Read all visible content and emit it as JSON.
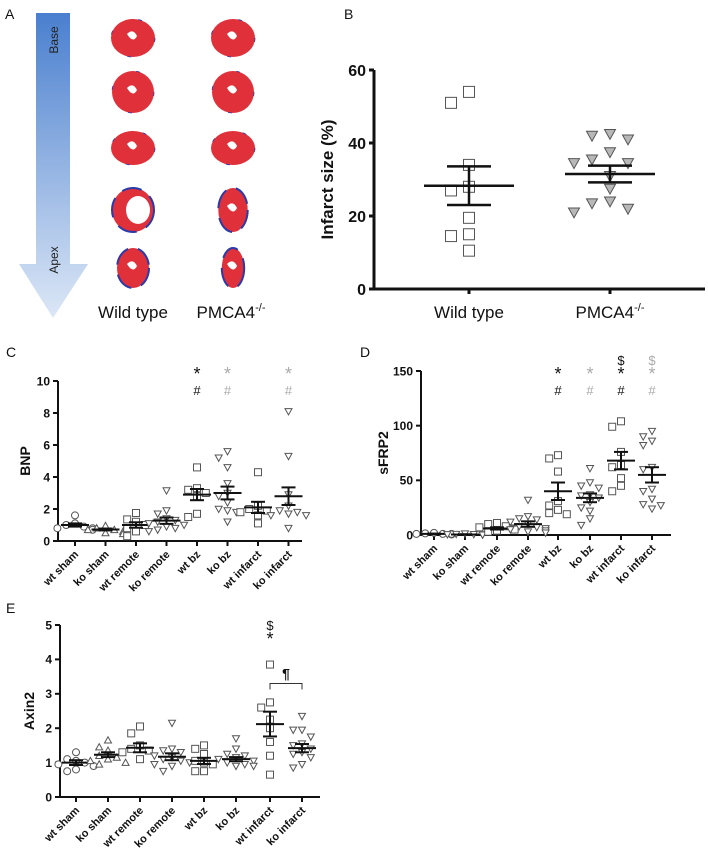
{
  "panel_a": {
    "letter": "A",
    "arrow_top_label": "Base",
    "arrow_bottom_label": "Apex",
    "columns": [
      {
        "label": "Wild type",
        "sup": ""
      },
      {
        "label": "PMCA4",
        "sup": "-/-"
      }
    ],
    "colors": {
      "arrow_top": "#4a7fcf",
      "arrow_bottom": "#dce7f6",
      "tissue": "#e0303a",
      "fibrosis": "#2a3aa8"
    }
  },
  "chart_data": [
    {
      "panel": "B",
      "type": "scatter",
      "title": "",
      "xlabel": "",
      "ylabel": "Infarct size (%)",
      "ylim": [
        0,
        60
      ],
      "yticks": [
        0,
        20,
        40,
        60
      ],
      "grid": false,
      "categories": [
        "Wild type",
        "PMCA4"
      ],
      "category_sup": [
        "",
        "-/-"
      ],
      "groups": [
        {
          "marker": "square",
          "fill": "#ffffff",
          "points": [
            54,
            51,
            34,
            28,
            27,
            19.5,
            15,
            14.5,
            10.5
          ],
          "mean": 28.3,
          "sem": 5.3,
          "annotations": []
        },
        {
          "marker": "tri-down",
          "fill": "#b8b8b8",
          "points": [
            42.5,
            42,
            41,
            37.5,
            35.5,
            34.5,
            34.5,
            31,
            27.5,
            24,
            23.5,
            22,
            21
          ],
          "mean": 31.5,
          "sem": 2.3,
          "annotations": []
        }
      ]
    },
    {
      "panel": "C",
      "type": "scatter",
      "title": "",
      "xlabel": "",
      "ylabel": "BNP",
      "ylim": [
        0,
        10
      ],
      "yticks": [
        0,
        2,
        4,
        6,
        8,
        10
      ],
      "grid": false,
      "categories": [
        "wt sham",
        "ko sham",
        "wt remote",
        "ko remote",
        "wt bz",
        "ko bz",
        "wt infarct",
        "ko infarct"
      ],
      "groups": [
        {
          "marker": "circle",
          "fill": "#ffffff",
          "points": [
            1.6,
            1.1,
            1.0,
            0.9,
            0.8,
            0.8,
            0.7
          ],
          "mean": 1.0,
          "sem": 0.1,
          "annotations": []
        },
        {
          "marker": "tri-up",
          "fill": "#ffffff",
          "points": [
            0.95,
            0.8,
            0.7,
            0.7,
            0.6,
            0.5,
            0.45
          ],
          "mean": 0.72,
          "sem": 0.06,
          "annotations": []
        },
        {
          "marker": "square",
          "fill": "#ffffff",
          "points": [
            1.75,
            1.35,
            1.2,
            1.0,
            0.8,
            0.6,
            0.3
          ],
          "mean": 1.0,
          "sem": 0.17,
          "annotations": []
        },
        {
          "marker": "tri-down",
          "fill": "#ffffff",
          "points": [
            3.15,
            1.9,
            1.7,
            1.4,
            1.3,
            1.2,
            1.1,
            1.0,
            0.9,
            0.8,
            0.7,
            0.6
          ],
          "mean": 1.27,
          "sem": 0.2,
          "annotations": []
        },
        {
          "marker": "square",
          "fill": "#ffffff",
          "points": [
            4.6,
            3.3,
            3.2,
            3.0,
            2.8,
            1.7,
            1.5
          ],
          "mean": 2.9,
          "sem": 0.35,
          "annotations": [
            {
              "text": "*",
              "color": "#111111"
            },
            {
              "text": "#",
              "color": "#111111"
            }
          ]
        },
        {
          "marker": "tri-down",
          "fill": "#ffffff",
          "points": [
            5.6,
            5.2,
            4.6,
            3.6,
            3.0,
            2.8,
            2.4,
            2.0,
            1.9,
            1.8,
            1.2
          ],
          "mean": 3.0,
          "sem": 0.4,
          "annotations": [
            {
              "text": "*",
              "color": "#aaaaaa"
            },
            {
              "text": "#",
              "color": "#aaaaaa"
            }
          ]
        },
        {
          "marker": "square",
          "fill": "#ffffff",
          "points": [
            4.3,
            2.2,
            2.0,
            1.9,
            1.8,
            1.6,
            1.1
          ],
          "mean": 2.1,
          "sem": 0.35,
          "annotations": []
        },
        {
          "marker": "tri-down",
          "fill": "#ffffff",
          "points": [
            8.1,
            5.3,
            2.9,
            2.2,
            1.9,
            1.8,
            1.7,
            1.6,
            1.6,
            0.8
          ],
          "mean": 2.8,
          "sem": 0.55,
          "annotations": [
            {
              "text": "*",
              "color": "#aaaaaa"
            },
            {
              "text": "#",
              "color": "#aaaaaa"
            }
          ]
        }
      ]
    },
    {
      "panel": "D",
      "type": "scatter",
      "title": "",
      "xlabel": "",
      "ylabel": "sFRP2",
      "ylim": [
        0,
        150
      ],
      "yticks": [
        0,
        50,
        100,
        150
      ],
      "grid": false,
      "categories": [
        "wt sham",
        "ko sham",
        "wt remote",
        "ko remote",
        "wt bz",
        "ko bz",
        "wt infarct",
        "ko infarct"
      ],
      "groups": [
        {
          "marker": "circle",
          "fill": "#ffffff",
          "points": [
            2,
            1.5,
            1,
            1,
            0.8,
            0.5,
            1
          ],
          "mean": 1.0,
          "sem": 0.3,
          "annotations": []
        },
        {
          "marker": "tri-down",
          "fill": "#ffffff",
          "points": [
            1.2,
            0.8,
            0.6,
            0.5,
            0.4,
            0.3,
            0.2
          ],
          "mean": 0.5,
          "sem": 0.2,
          "annotations": []
        },
        {
          "marker": "square",
          "fill": "#ffffff",
          "points": [
            11,
            10,
            8,
            7,
            6,
            5,
            4,
            3
          ],
          "mean": 6,
          "sem": 1,
          "annotations": []
        },
        {
          "marker": "tri-down",
          "fill": "#ffffff",
          "points": [
            32,
            17,
            15,
            14,
            12,
            10,
            8,
            7,
            6,
            5,
            4,
            3,
            2
          ],
          "mean": 10,
          "sem": 2.5,
          "annotations": []
        },
        {
          "marker": "square",
          "fill": "#ffffff",
          "points": [
            73,
            70,
            58,
            31,
            27,
            23,
            20,
            19
          ],
          "mean": 40,
          "sem": 8,
          "annotations": [
            {
              "text": "*",
              "color": "#111111"
            },
            {
              "text": "#",
              "color": "#111111"
            }
          ]
        },
        {
          "marker": "tri-down",
          "fill": "#ffffff",
          "points": [
            61,
            48,
            45,
            43,
            37,
            36,
            34,
            30,
            25,
            22,
            15,
            9
          ],
          "mean": 34,
          "sem": 4,
          "annotations": [
            {
              "text": "*",
              "color": "#aaaaaa"
            },
            {
              "text": "#",
              "color": "#aaaaaa"
            }
          ]
        },
        {
          "marker": "square",
          "fill": "#ffffff",
          "points": [
            104,
            99,
            76,
            64,
            62,
            52,
            45,
            40
          ],
          "mean": 68,
          "sem": 8,
          "annotations": [
            {
              "text": "$",
              "color": "#111111"
            },
            {
              "text": "*",
              "color": "#111111"
            },
            {
              "text": "#",
              "color": "#111111"
            }
          ]
        },
        {
          "marker": "tri-down",
          "fill": "#ffffff",
          "points": [
            95,
            90,
            86,
            82,
            62,
            60,
            42,
            40,
            33,
            28,
            27,
            24
          ],
          "mean": 55,
          "sem": 7,
          "annotations": [
            {
              "text": "$",
              "color": "#aaaaaa"
            },
            {
              "text": "*",
              "color": "#aaaaaa"
            },
            {
              "text": "#",
              "color": "#aaaaaa"
            }
          ]
        }
      ]
    },
    {
      "panel": "E",
      "type": "scatter",
      "title": "",
      "xlabel": "",
      "ylabel": "Axin2",
      "ylim": [
        0,
        5
      ],
      "yticks": [
        0,
        1,
        2,
        3,
        4,
        5
      ],
      "grid": false,
      "categories": [
        "wt sham",
        "ko sham",
        "wt remote",
        "ko remote",
        "wt bz",
        "ko bz",
        "wt infarct",
        "ko infarct"
      ],
      "bracket": {
        "from": "wt infarct",
        "to": "ko infarct",
        "y": 3.3,
        "text": "¶"
      },
      "groups": [
        {
          "marker": "circle",
          "fill": "#ffffff",
          "points": [
            1.3,
            1.1,
            1.05,
            1.0,
            0.95,
            0.9,
            0.8,
            0.75
          ],
          "mean": 1.0,
          "sem": 0.07,
          "annotations": []
        },
        {
          "marker": "tri-up",
          "fill": "#ffffff",
          "points": [
            1.65,
            1.45,
            1.35,
            1.2,
            1.15,
            1.1,
            1.05,
            1.0,
            0.95
          ],
          "mean": 1.23,
          "sem": 0.07,
          "annotations": []
        },
        {
          "marker": "square",
          "fill": "#ffffff",
          "points": [
            2.05,
            1.85,
            1.5,
            1.4,
            1.35,
            1.3,
            1.1
          ],
          "mean": 1.43,
          "sem": 0.13,
          "annotations": []
        },
        {
          "marker": "tri-down",
          "fill": "#ffffff",
          "points": [
            2.15,
            1.4,
            1.35,
            1.3,
            1.2,
            1.15,
            1.1,
            1.05,
            1.0,
            0.95,
            0.9,
            0.75
          ],
          "mean": 1.17,
          "sem": 0.1,
          "annotations": []
        },
        {
          "marker": "square",
          "fill": "#ffffff",
          "points": [
            1.5,
            1.4,
            1.25,
            1.05,
            1.0,
            0.95,
            0.75,
            0.75
          ],
          "mean": 1.05,
          "sem": 0.09,
          "annotations": []
        },
        {
          "marker": "tri-down",
          "fill": "#ffffff",
          "points": [
            1.7,
            1.4,
            1.25,
            1.2,
            1.15,
            1.1,
            1.05,
            1.0,
            0.95,
            0.9,
            0.9
          ],
          "mean": 1.1,
          "sem": 0.06,
          "annotations": []
        },
        {
          "marker": "square",
          "fill": "#ffffff",
          "points": [
            3.85,
            2.75,
            2.6,
            2.25,
            2.0,
            1.6,
            1.2,
            0.65
          ],
          "mean": 2.12,
          "sem": 0.36,
          "annotations": [
            {
              "text": "$",
              "color": "#111111"
            },
            {
              "text": "*",
              "color": "#111111"
            }
          ]
        },
        {
          "marker": "tri-down",
          "fill": "#ffffff",
          "points": [
            2.35,
            1.95,
            1.95,
            1.75,
            1.55,
            1.5,
            1.4,
            1.3,
            1.25,
            1.15,
            0.95,
            0.85
          ],
          "mean": 1.42,
          "sem": 0.12,
          "annotations": []
        }
      ]
    }
  ]
}
